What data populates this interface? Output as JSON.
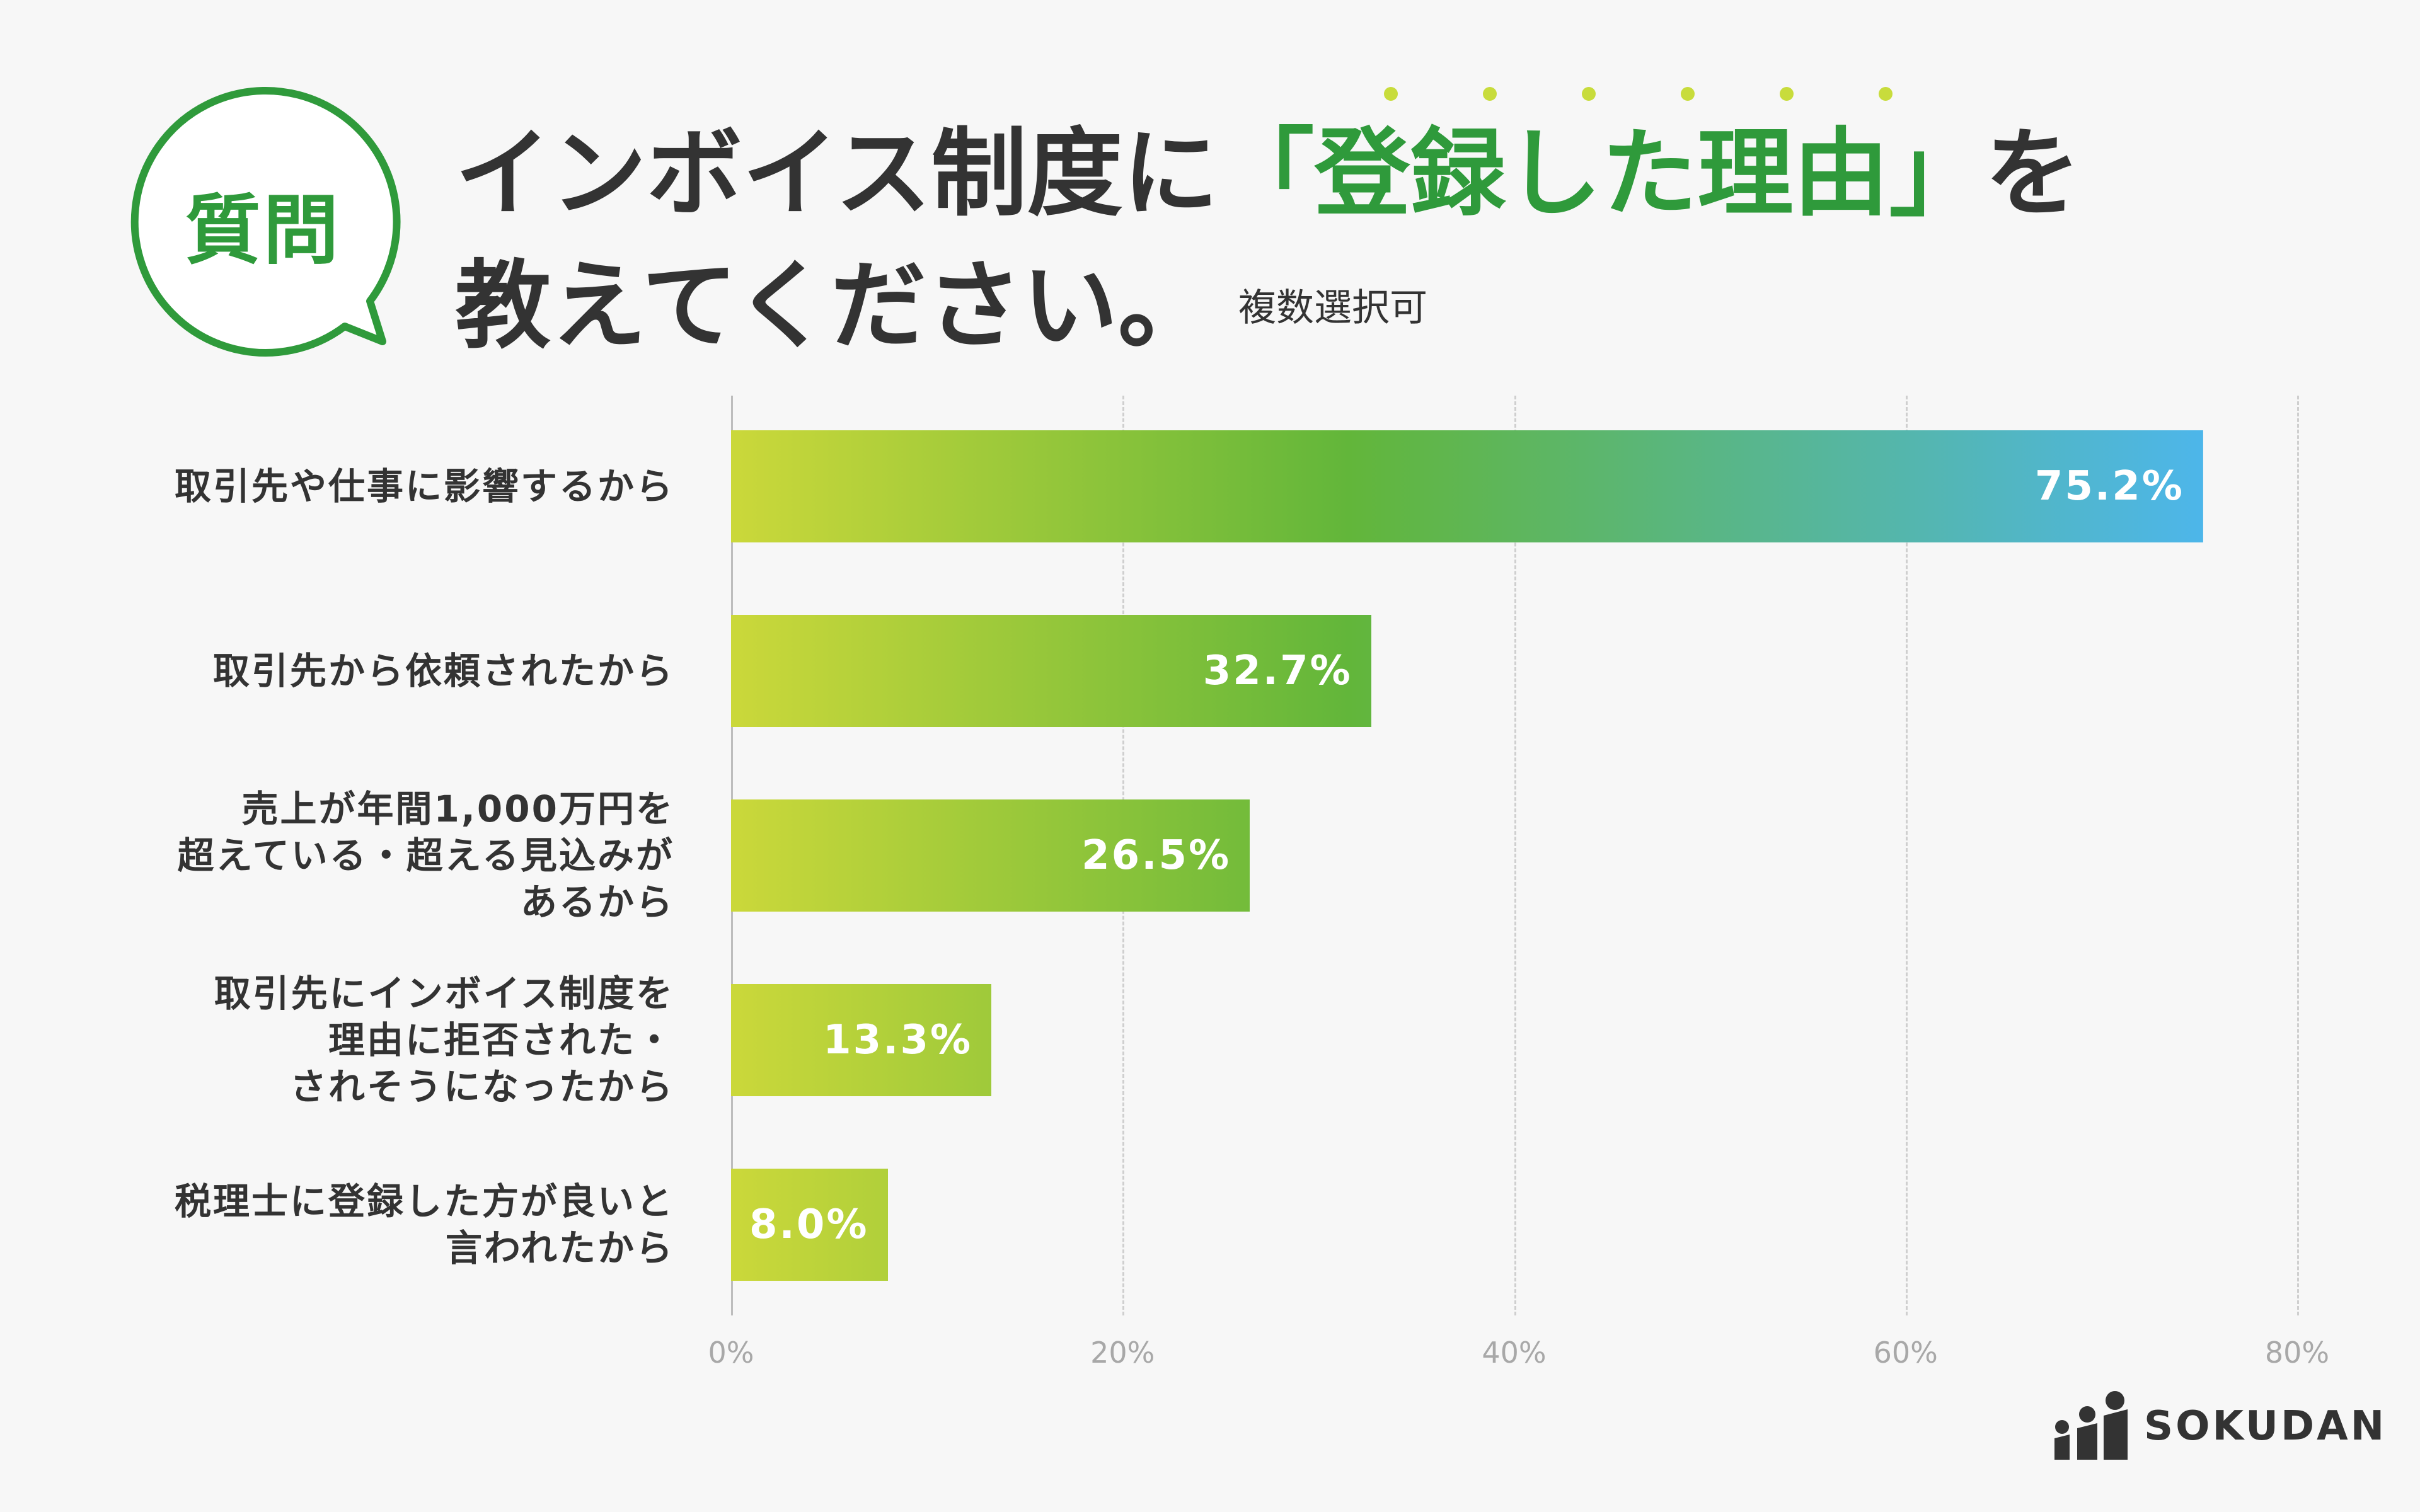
{
  "question_badge": "質問",
  "title": {
    "line1_before": "インボイス制度に",
    "line1_accent": "「登録した理由」",
    "line1_after": "を",
    "line2": "教えてください。",
    "note": "複数選択可"
  },
  "colors": {
    "accent_green": "#2f9a3b",
    "bar_start": "#cbd83a",
    "bar_mid": "#62b63a",
    "bar_end": "#4db6ea",
    "emphasis_dots": "#c8dc3c"
  },
  "icons": {
    "badge": "speech-bubble-icon",
    "logo": "sokudan-logo-icon"
  },
  "brand": "SOKUDAN",
  "chart_data": {
    "type": "bar",
    "orientation": "horizontal",
    "categories": [
      [
        "取引先や仕事に影響するから"
      ],
      [
        "取引先から依頼されたから"
      ],
      [
        "売上が年間1,000万円を",
        "超えている・超える見込みが",
        "あるから"
      ],
      [
        "取引先にインボイス制度を",
        "理由に拒否された・",
        "されそうになったから"
      ],
      [
        "税理士に登録した方が良いと",
        "言われたから"
      ]
    ],
    "values": [
      75.2,
      32.7,
      26.5,
      13.3,
      8.0
    ],
    "value_labels": [
      "75.2%",
      "32.7%",
      "26.5%",
      "13.3%",
      "8.0%"
    ],
    "xlim": [
      0,
      80
    ],
    "xticks": [
      0,
      20,
      40,
      60,
      80
    ],
    "xtick_labels": [
      "0%",
      "20%",
      "40%",
      "60%",
      "80%"
    ],
    "grid": true
  }
}
